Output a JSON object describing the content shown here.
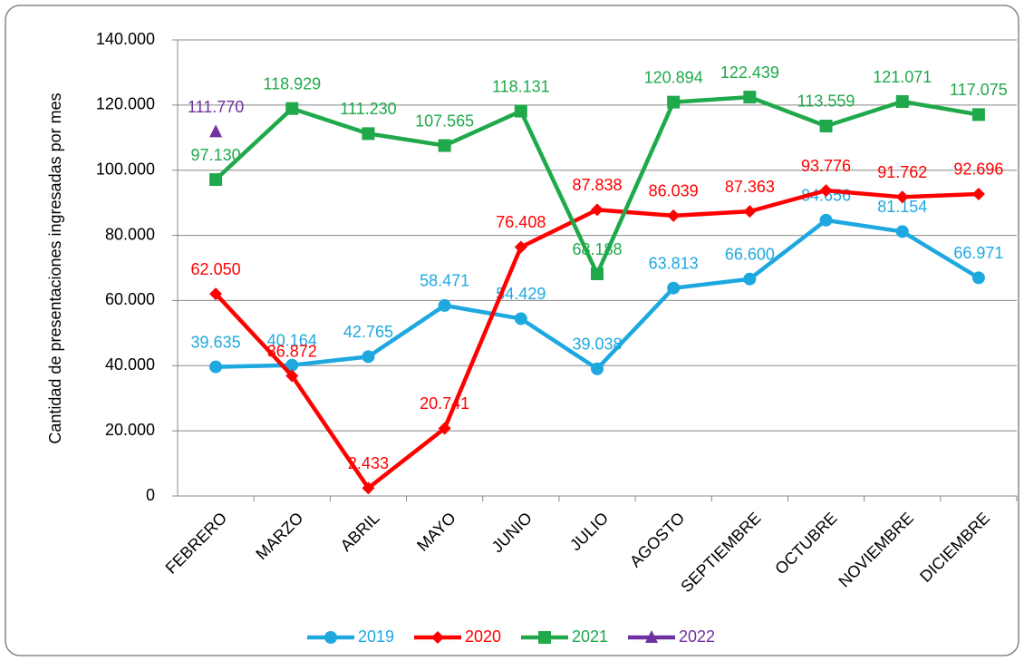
{
  "chart_data": {
    "type": "line",
    "y_label": "Cantidad de presentaciones ingresadas por mes",
    "categories": [
      "FEBRERO",
      "MARZO",
      "ABRIL",
      "MAYO",
      "JUNIO",
      "JULIO",
      "AGOSTO",
      "SEPTIEMBRE",
      "OCTUBRE",
      "NOVIEMBRE",
      "DICIEMBRE"
    ],
    "series": [
      {
        "name": "2019",
        "color": "#1ea8e0",
        "marker": "circle",
        "values": [
          39635,
          40164,
          42765,
          58471,
          54429,
          39038,
          63813,
          66600,
          84656,
          81154,
          66971
        ],
        "value_labels": [
          "39.635",
          "40.164",
          "42.765",
          "58.471",
          "54.429",
          "39.038",
          "63.813",
          "66.600",
          "84.656",
          "81.154",
          "66.971"
        ]
      },
      {
        "name": "2020",
        "color": "#ff0000",
        "marker": "diamond",
        "values": [
          62050,
          36872,
          2433,
          20741,
          76408,
          87838,
          86039,
          87363,
          93776,
          91762,
          92696
        ],
        "value_labels": [
          "62.050",
          "36.872",
          "2.433",
          "20.741",
          "76.408",
          "87.838",
          "86.039",
          "87.363",
          "93.776",
          "91.762",
          "92.696"
        ]
      },
      {
        "name": "2021",
        "color": "#1fa94b",
        "marker": "square",
        "values": [
          97130,
          118929,
          111230,
          107565,
          118131,
          68188,
          120894,
          122439,
          113559,
          121071,
          117075
        ],
        "value_labels": [
          "97.130",
          "118.929",
          "111.230",
          "107.565",
          "118.131",
          "68.188",
          "120.894",
          "122.439",
          "113.559",
          "121.071",
          "117.075"
        ]
      },
      {
        "name": "2022",
        "color": "#7030a0",
        "marker": "triangle",
        "values": [
          111770,
          null,
          null,
          null,
          null,
          null,
          null,
          null,
          null,
          null,
          null
        ],
        "value_labels": [
          "111.770",
          null,
          null,
          null,
          null,
          null,
          null,
          null,
          null,
          null,
          null
        ]
      }
    ],
    "ylim": [
      0,
      140000
    ],
    "yticks": [
      0,
      {
        "value": 20000,
        "label": "20.000"
      },
      {
        "value": 40000,
        "label": "40.000"
      },
      {
        "value": 60000,
        "label": "60.000"
      },
      {
        "value": 80000,
        "label": "80.000"
      },
      {
        "value": 100000,
        "label": "100.000"
      },
      {
        "value": 120000,
        "label": "120.000"
      },
      {
        "value": 140000,
        "label": "140.000"
      }
    ],
    "grid": true,
    "legend": "bottom"
  }
}
